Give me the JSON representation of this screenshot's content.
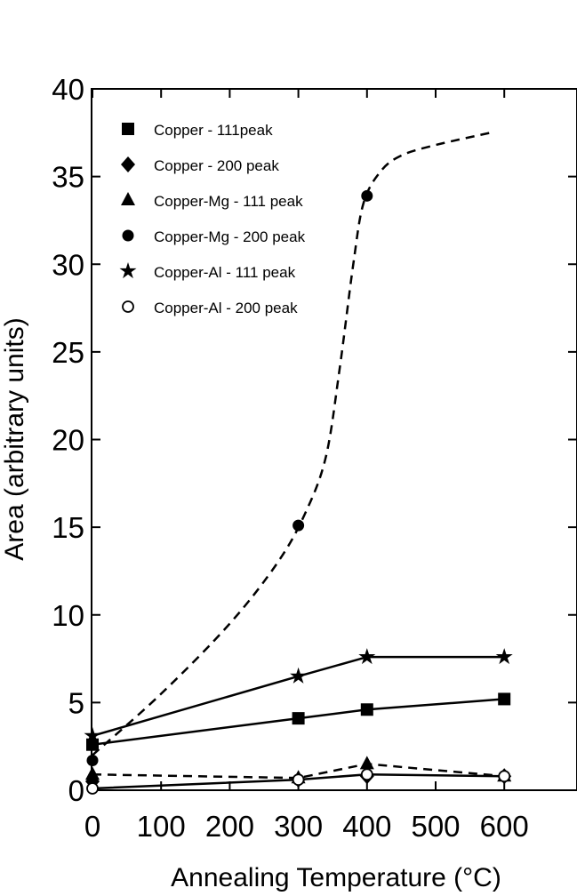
{
  "chart_data": {
    "type": "scatter",
    "title": "",
    "xlabel": "Annealing Temperature (°C)",
    "ylabel": "Area (arbitrary units)",
    "xlim": [
      -5,
      700
    ],
    "ylim": [
      0,
      40
    ],
    "xticks": [
      0,
      100,
      200,
      300,
      400,
      500,
      600
    ],
    "yticks": [
      0,
      5,
      10,
      15,
      20,
      25,
      30,
      35,
      40
    ],
    "grid": false,
    "legend_position": "top-left",
    "series": [
      {
        "name": "Copper - 111peak",
        "marker": "square",
        "x": [
          0,
          300,
          400,
          600
        ],
        "y": [
          2.6,
          4.1,
          4.6,
          5.2
        ]
      },
      {
        "name": "Copper - 200 peak",
        "marker": "diamond",
        "x": [
          0,
          300,
          400,
          600
        ],
        "y": [
          0.5,
          0.6,
          0.8,
          0.8
        ]
      },
      {
        "name": "Copper-Mg - 111 peak",
        "marker": "triangle",
        "x": [
          0,
          300,
          400,
          600
        ],
        "y": [
          0.9,
          0.7,
          1.5,
          0.8
        ]
      },
      {
        "name": "Copper-Mg - 200 peak",
        "marker": "circle",
        "x": [
          0,
          300,
          400
        ],
        "y": [
          1.7,
          15.1,
          33.9
        ]
      },
      {
        "name": "Copper-Al - 111 peak",
        "marker": "star",
        "x": [
          0,
          300,
          400,
          600
        ],
        "y": [
          3.1,
          6.5,
          7.6,
          7.6
        ]
      },
      {
        "name": "Copper-Al - 200 peak",
        "marker": "open-circle",
        "x": [
          0,
          300,
          400,
          600
        ],
        "y": [
          0.1,
          0.6,
          0.9,
          0.8
        ]
      }
    ],
    "curves": [
      {
        "style": "solid",
        "x": [
          0,
          300,
          400,
          600
        ],
        "y": [
          2.6,
          4.1,
          4.6,
          5.2
        ]
      },
      {
        "style": "solid",
        "x": [
          0,
          300,
          400,
          600
        ],
        "y": [
          3.1,
          6.5,
          7.6,
          7.6
        ]
      },
      {
        "style": "solid",
        "x": [
          0,
          300,
          400,
          600
        ],
        "y": [
          0.1,
          0.6,
          0.9,
          0.8
        ]
      },
      {
        "style": "dashed",
        "x": [
          0,
          300,
          400,
          600
        ],
        "y": [
          0.9,
          0.7,
          1.5,
          0.8
        ]
      },
      {
        "style": "dashed",
        "x": [
          0,
          100,
          200,
          270,
          310,
          340,
          360,
          380,
          395,
          420,
          450,
          500,
          580
        ],
        "y": [
          2.0,
          5.5,
          9.5,
          13.0,
          15.8,
          19.0,
          24.0,
          30.0,
          33.5,
          35.3,
          36.2,
          36.8,
          37.5
        ]
      }
    ]
  }
}
